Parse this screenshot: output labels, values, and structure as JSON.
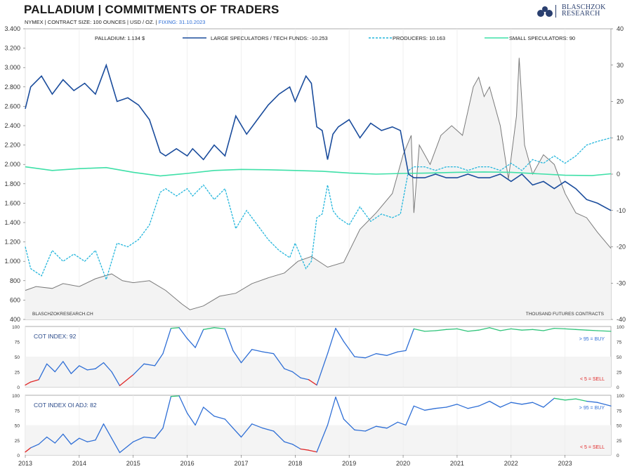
{
  "header": {
    "title": "PALLADIUM  |  COMMITMENTS OF TRADERS",
    "subtitle": "NYMEX | CONTRACT SIZE: 100 OUNCES | USD / OZ. |",
    "fixing": "FIXING: 31.10.2023"
  },
  "logo": {
    "line1": "BLASCHZOK",
    "line2": "RESEARCH"
  },
  "chart_data": [
    {
      "type": "line",
      "panel": "main",
      "title": "PALLADIUM | COMMITMENTS OF TRADERS",
      "xlabel": "",
      "x_ticks": [
        "2013",
        "2014",
        "2015",
        "2016",
        "2017",
        "2018",
        "2019",
        "2020",
        "2021",
        "2022",
        "2023"
      ],
      "xlim": [
        2013.0,
        2023.85
      ],
      "left_axis": {
        "ylabel": "USD / oz",
        "ylim": [
          400,
          3400
        ],
        "ticks": [
          "3.400",
          "3.200",
          "3.000",
          "2.800",
          "2.600",
          "2.400",
          "2.200",
          "2.000",
          "1.800",
          "1.600",
          "1.400",
          "1.200",
          "1.000",
          "800",
          "600",
          "400"
        ]
      },
      "right_axis": {
        "ylabel": "THOUSAND FUTURES CONTRACTS",
        "ylim": [
          -40,
          40
        ],
        "ticks": [
          "40",
          "30",
          "20",
          "10",
          "0",
          "-10",
          "-20",
          "-30",
          "-40"
        ]
      },
      "legend": [
        {
          "label": "PALLADIUM: 1.134 $",
          "color": "#7a7a7a",
          "style": "solid"
        },
        {
          "label": "LARGE SPECULATORS / TECH FUNDS: -10.253",
          "color": "#1a4c9c",
          "style": "solid"
        },
        {
          "label": "PRODUCERS: 10.163",
          "color": "#24b6dc",
          "style": "dashed"
        },
        {
          "label": "SMALL SPECULATORS: 90",
          "color": "#3fe0a8",
          "style": "solid"
        }
      ],
      "annotations": {
        "source": "BLASCHZOKRESEARCH.CH",
        "units": "THOUSAND  FUTURES  CONTRACTS"
      },
      "series": [
        {
          "name": "Palladium",
          "axis": "left",
          "color": "#7a7a7a",
          "x": [
            2013.0,
            2013.2,
            2013.5,
            2013.7,
            2014.0,
            2014.3,
            2014.6,
            2014.8,
            2015.0,
            2015.3,
            2015.6,
            2015.9,
            2016.05,
            2016.3,
            2016.6,
            2016.9,
            2017.2,
            2017.5,
            2017.8,
            2018.05,
            2018.3,
            2018.6,
            2018.9,
            2019.2,
            2019.5,
            2019.8,
            2020.0,
            2020.15,
            2020.2,
            2020.3,
            2020.5,
            2020.7,
            2020.9,
            2021.1,
            2021.3,
            2021.4,
            2021.5,
            2021.6,
            2021.8,
            2021.95,
            2022.1,
            2022.15,
            2022.25,
            2022.4,
            2022.6,
            2022.8,
            2023.0,
            2023.2,
            2023.4,
            2023.6,
            2023.85
          ],
          "values": [
            700,
            740,
            720,
            770,
            740,
            820,
            870,
            800,
            780,
            800,
            700,
            560,
            500,
            540,
            640,
            670,
            770,
            830,
            880,
            1000,
            1050,
            940,
            990,
            1330,
            1500,
            1700,
            2100,
            2300,
            1500,
            2200,
            2000,
            2300,
            2400,
            2300,
            2800,
            2900,
            2700,
            2800,
            2400,
            1850,
            2500,
            3100,
            2200,
            1900,
            2100,
            2000,
            1700,
            1500,
            1450,
            1300,
            1134
          ]
        },
        {
          "name": "Large Speculators / Tech Funds",
          "axis": "right",
          "color": "#1a4c9c",
          "x": [
            2013.0,
            2013.1,
            2013.3,
            2013.5,
            2013.7,
            2013.9,
            2014.1,
            2014.3,
            2014.5,
            2014.7,
            2014.9,
            2015.1,
            2015.3,
            2015.5,
            2015.6,
            2015.8,
            2016.0,
            2016.1,
            2016.3,
            2016.5,
            2016.7,
            2016.9,
            2017.1,
            2017.3,
            2017.5,
            2017.7,
            2017.9,
            2018.0,
            2018.2,
            2018.3,
            2018.4,
            2018.5,
            2018.6,
            2018.7,
            2018.8,
            2019.0,
            2019.2,
            2019.4,
            2019.6,
            2019.8,
            2019.95,
            2020.1,
            2020.2,
            2020.4,
            2020.6,
            2020.8,
            2021.0,
            2021.2,
            2021.4,
            2021.6,
            2021.8,
            2022.0,
            2022.2,
            2022.4,
            2022.6,
            2022.8,
            2023.0,
            2023.2,
            2023.4,
            2023.6,
            2023.85
          ],
          "values": [
            18,
            24,
            27,
            22,
            26,
            23,
            25,
            22,
            30,
            20,
            21,
            19,
            15,
            6,
            5,
            7,
            5,
            7,
            4,
            8,
            5,
            16,
            11,
            15,
            19,
            22,
            24,
            20,
            27,
            25,
            13,
            12,
            4,
            11,
            13,
            15,
            10,
            14,
            12,
            13,
            12,
            0,
            -1,
            -1,
            0,
            -1,
            -1,
            0,
            -1,
            -1,
            0,
            -2,
            0,
            -3,
            -2,
            -4,
            -2,
            -4,
            -7,
            -8,
            -10
          ]
        },
        {
          "name": "Producers",
          "axis": "right",
          "color": "#24b6dc",
          "x": [
            2013.0,
            2013.1,
            2013.3,
            2013.5,
            2013.7,
            2013.9,
            2014.1,
            2014.3,
            2014.5,
            2014.7,
            2014.9,
            2015.1,
            2015.3,
            2015.5,
            2015.6,
            2015.8,
            2016.0,
            2016.1,
            2016.3,
            2016.5,
            2016.7,
            2016.9,
            2017.1,
            2017.3,
            2017.5,
            2017.7,
            2017.9,
            2018.0,
            2018.2,
            2018.3,
            2018.4,
            2018.5,
            2018.6,
            2018.7,
            2018.8,
            2019.0,
            2019.2,
            2019.4,
            2019.6,
            2019.8,
            2019.95,
            2020.1,
            2020.2,
            2020.4,
            2020.6,
            2020.8,
            2021.0,
            2021.2,
            2021.4,
            2021.6,
            2021.8,
            2022.0,
            2022.2,
            2022.4,
            2022.6,
            2022.8,
            2023.0,
            2023.2,
            2023.4,
            2023.6,
            2023.85
          ],
          "values": [
            -20,
            -26,
            -28,
            -21,
            -24,
            -22,
            -24,
            -21,
            -29,
            -19,
            -20,
            -18,
            -14,
            -5,
            -4,
            -6,
            -4,
            -6,
            -3,
            -7,
            -4,
            -15,
            -10,
            -14,
            -18,
            -21,
            -23,
            -19,
            -26,
            -24,
            -12,
            -11,
            -3,
            -10,
            -12,
            -14,
            -9,
            -13,
            -11,
            -12,
            -11,
            1,
            2,
            2,
            1,
            2,
            2,
            1,
            2,
            2,
            1,
            3,
            1,
            4,
            3,
            5,
            3,
            5,
            8,
            9,
            10
          ]
        },
        {
          "name": "Small Speculators",
          "axis": "right",
          "color": "#3fe0a8",
          "x": [
            2013.0,
            2013.5,
            2014.0,
            2014.5,
            2015.0,
            2015.5,
            2016.0,
            2016.5,
            2017.0,
            2017.5,
            2018.0,
            2018.5,
            2019.0,
            2019.5,
            2020.0,
            2020.5,
            2021.0,
            2021.5,
            2022.0,
            2022.5,
            2023.0,
            2023.5,
            2023.85
          ],
          "values": [
            2,
            1,
            1.5,
            1.8,
            0.5,
            -0.5,
            0.2,
            1,
            1.3,
            1.2,
            1,
            0.8,
            0.3,
            0,
            0.2,
            0.3,
            0.5,
            0.6,
            0.5,
            0.1,
            -0.3,
            -0.4,
            0.09
          ]
        }
      ]
    },
    {
      "type": "line",
      "panel": "cot_index",
      "title": "COT INDEX: 92",
      "ylim": [
        0,
        100
      ],
      "y_ticks": [
        "100",
        "75",
        "50",
        "25",
        "0"
      ],
      "buy_label": "> 95 = BUY",
      "sell_label": "< 5 = SELL",
      "x": [
        2013.0,
        2013.1,
        2013.25,
        2013.4,
        2013.55,
        2013.7,
        2013.85,
        2014.0,
        2014.15,
        2014.3,
        2014.45,
        2014.6,
        2014.75,
        2015.0,
        2015.2,
        2015.4,
        2015.55,
        2015.7,
        2015.85,
        2016.0,
        2016.15,
        2016.3,
        2016.5,
        2016.7,
        2016.85,
        2017.0,
        2017.2,
        2017.4,
        2017.6,
        2017.8,
        2017.95,
        2018.1,
        2018.25,
        2018.4,
        2018.6,
        2018.75,
        2018.9,
        2019.1,
        2019.3,
        2019.5,
        2019.7,
        2019.9,
        2020.05,
        2020.2,
        2020.4,
        2020.6,
        2020.8,
        2021.0,
        2021.2,
        2021.4,
        2021.6,
        2021.8,
        2022.0,
        2022.2,
        2022.4,
        2022.6,
        2022.8,
        2023.0,
        2023.2,
        2023.4,
        2023.6,
        2023.85
      ],
      "values": [
        3,
        8,
        12,
        38,
        25,
        42,
        22,
        35,
        28,
        30,
        40,
        25,
        2,
        20,
        38,
        35,
        55,
        97,
        98,
        80,
        65,
        95,
        98,
        96,
        60,
        40,
        62,
        58,
        55,
        30,
        25,
        15,
        12,
        3,
        55,
        97,
        75,
        50,
        48,
        55,
        52,
        58,
        60,
        96,
        92,
        93,
        95,
        96,
        92,
        94,
        98,
        93,
        96,
        94,
        95,
        93,
        97,
        96,
        95,
        94,
        93,
        92
      ]
    },
    {
      "type": "line",
      "panel": "cot_index_oi_adj",
      "title": "COT INDEX OI ADJ: 82",
      "ylim": [
        0,
        100
      ],
      "y_ticks": [
        "100",
        "75",
        "50",
        "25",
        "0"
      ],
      "buy_label": "> 95 = BUY",
      "sell_label": "< 5 = SELL",
      "x": [
        2013.0,
        2013.1,
        2013.25,
        2013.4,
        2013.55,
        2013.7,
        2013.85,
        2014.0,
        2014.15,
        2014.3,
        2014.45,
        2014.6,
        2014.75,
        2015.0,
        2015.2,
        2015.4,
        2015.55,
        2015.7,
        2015.85,
        2016.0,
        2016.15,
        2016.3,
        2016.5,
        2016.7,
        2016.85,
        2017.0,
        2017.2,
        2017.4,
        2017.6,
        2017.8,
        2017.95,
        2018.1,
        2018.25,
        2018.4,
        2018.6,
        2018.75,
        2018.9,
        2019.1,
        2019.3,
        2019.5,
        2019.7,
        2019.9,
        2020.05,
        2020.2,
        2020.4,
        2020.6,
        2020.8,
        2021.0,
        2021.2,
        2021.4,
        2021.6,
        2021.8,
        2022.0,
        2022.2,
        2022.4,
        2022.6,
        2022.8,
        2023.0,
        2023.2,
        2023.4,
        2023.6,
        2023.85
      ],
      "values": [
        5,
        12,
        18,
        30,
        20,
        35,
        18,
        28,
        22,
        25,
        52,
        28,
        4,
        22,
        30,
        28,
        45,
        98,
        99,
        70,
        50,
        80,
        65,
        60,
        45,
        30,
        52,
        45,
        40,
        22,
        18,
        10,
        8,
        5,
        50,
        97,
        60,
        42,
        40,
        48,
        45,
        55,
        50,
        82,
        75,
        78,
        80,
        85,
        78,
        82,
        90,
        80,
        88,
        85,
        88,
        80,
        95,
        92,
        94,
        90,
        88,
        82
      ]
    }
  ]
}
